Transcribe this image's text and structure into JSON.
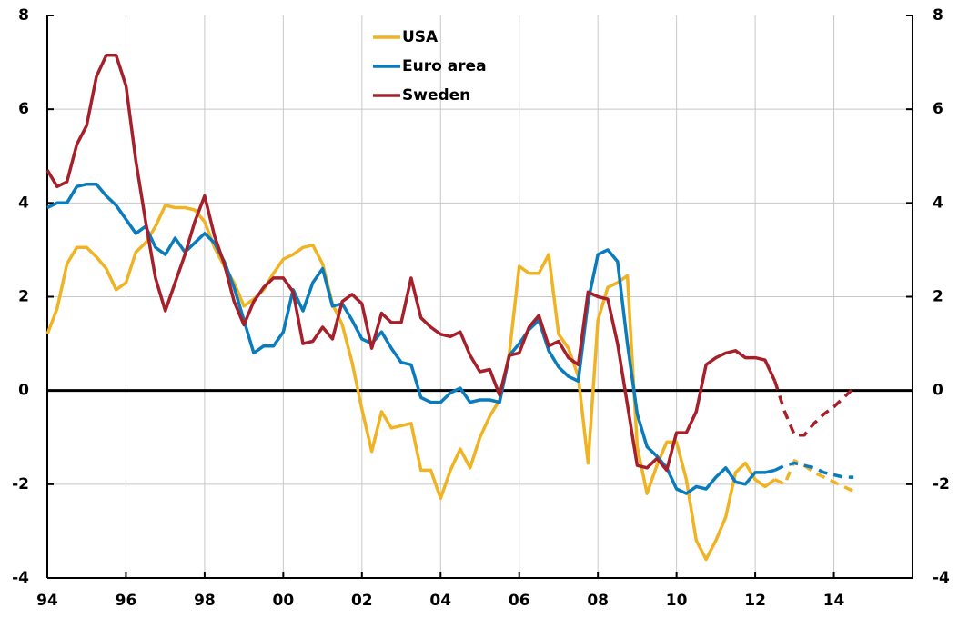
{
  "chart_data": {
    "type": "line",
    "x": [
      1994,
      1994.25,
      1994.5,
      1994.75,
      1995,
      1995.25,
      1995.5,
      1995.75,
      1996,
      1996.25,
      1996.5,
      1996.75,
      1997,
      1997.25,
      1997.5,
      1997.75,
      1998,
      1998.25,
      1998.5,
      1998.75,
      1999,
      1999.25,
      1999.5,
      1999.75,
      2000,
      2000.25,
      2000.5,
      2000.75,
      2001,
      2001.25,
      2001.5,
      2001.75,
      2002,
      2002.25,
      2002.5,
      2002.75,
      2003,
      2003.25,
      2003.5,
      2003.75,
      2004,
      2004.25,
      2004.5,
      2004.75,
      2005,
      2005.25,
      2005.5,
      2005.75,
      2006,
      2006.25,
      2006.5,
      2006.75,
      2007,
      2007.25,
      2007.5,
      2007.75,
      2008,
      2008.25,
      2008.5,
      2008.75,
      2009,
      2009.25,
      2009.5,
      2009.75,
      2010,
      2010.25,
      2010.5,
      2010.75,
      2011,
      2011.25,
      2011.5,
      2011.75,
      2012,
      2012.25,
      2012.5,
      2012.75,
      2013,
      2013.25,
      2013.5,
      2013.75,
      2014,
      2014.25,
      2014.5
    ],
    "series": [
      {
        "name": "USA",
        "color": "#f0b323",
        "values": [
          1.2,
          1.75,
          2.7,
          3.05,
          3.05,
          2.85,
          2.6,
          2.15,
          2.3,
          2.95,
          3.15,
          3.5,
          3.95,
          3.9,
          3.9,
          3.85,
          3.6,
          3.05,
          2.65,
          2.3,
          1.8,
          1.95,
          2.15,
          2.5,
          2.8,
          2.9,
          3.05,
          3.1,
          2.7,
          1.85,
          1.4,
          0.6,
          -0.4,
          -1.3,
          -0.45,
          -0.8,
          -0.75,
          -0.7,
          -1.7,
          -1.7,
          -2.3,
          -1.7,
          -1.25,
          -1.65,
          -1.0,
          -0.55,
          -0.2,
          0.8,
          2.65,
          2.5,
          2.5,
          2.9,
          1.2,
          0.9,
          0.3,
          -1.55,
          1.5,
          2.2,
          2.3,
          2.45,
          -1.2,
          -2.2,
          -1.6,
          -1.1,
          -1.1,
          -1.9,
          -3.2,
          -3.6,
          -3.2,
          -2.7,
          -1.75,
          -1.55,
          -1.9,
          -2.05,
          -1.9,
          -2.0,
          -1.5,
          -1.6,
          -1.75,
          -1.85,
          -1.95,
          -2.05,
          -2.15
        ]
      },
      {
        "name": "Euro area",
        "color": "#0a7bbd",
        "values": [
          3.9,
          4.0,
          4.0,
          4.35,
          4.4,
          4.4,
          4.15,
          3.95,
          3.65,
          3.35,
          3.5,
          3.05,
          2.9,
          3.25,
          2.95,
          3.15,
          3.35,
          3.15,
          2.75,
          2.2,
          1.5,
          0.8,
          0.95,
          0.95,
          1.25,
          2.15,
          1.7,
          2.3,
          2.6,
          1.8,
          1.85,
          1.5,
          1.1,
          1.0,
          1.25,
          0.9,
          0.6,
          0.55,
          -0.15,
          -0.25,
          -0.25,
          -0.05,
          0.05,
          -0.25,
          -0.2,
          -0.2,
          -0.25,
          0.75,
          1.0,
          1.3,
          1.5,
          0.85,
          0.5,
          0.3,
          0.2,
          1.9,
          2.9,
          3.0,
          2.75,
          1.0,
          -0.5,
          -1.2,
          -1.4,
          -1.65,
          -2.1,
          -2.2,
          -2.05,
          -2.1,
          -1.85,
          -1.65,
          -1.95,
          -2.0,
          -1.75,
          -1.75,
          -1.7,
          -1.6,
          -1.55,
          -1.6,
          -1.65,
          -1.75,
          -1.8,
          -1.85,
          -1.85
        ]
      },
      {
        "name": "Sweden",
        "color": "#a5202a",
        "values": [
          4.7,
          4.35,
          4.45,
          5.25,
          5.65,
          6.7,
          7.15,
          7.15,
          6.5,
          4.9,
          3.6,
          2.4,
          1.7,
          2.3,
          2.9,
          3.6,
          4.15,
          3.3,
          2.7,
          1.9,
          1.4,
          1.9,
          2.2,
          2.4,
          2.4,
          2.1,
          1.0,
          1.05,
          1.35,
          1.1,
          1.9,
          2.05,
          1.85,
          0.9,
          1.65,
          1.45,
          1.45,
          2.4,
          1.55,
          1.35,
          1.2,
          1.15,
          1.25,
          0.75,
          0.4,
          0.45,
          -0.1,
          0.75,
          0.8,
          1.35,
          1.6,
          0.95,
          1.05,
          0.7,
          0.55,
          2.1,
          2.0,
          1.95,
          1.0,
          -0.3,
          -1.6,
          -1.65,
          -1.45,
          -1.7,
          -0.9,
          -0.9,
          -0.45,
          0.55,
          0.7,
          0.8,
          0.85,
          0.7,
          0.7,
          0.65,
          0.2,
          -0.45,
          -0.95,
          -0.95,
          -0.7,
          -0.5,
          -0.35,
          -0.15,
          0.05
        ]
      }
    ],
    "forecast_from": 2012.5,
    "xlim": [
      1994,
      2016
    ],
    "xticks": [
      {
        "value": 1994,
        "label": "94"
      },
      {
        "value": 1996,
        "label": "96"
      },
      {
        "value": 1998,
        "label": "98"
      },
      {
        "value": 2000,
        "label": "00"
      },
      {
        "value": 2002,
        "label": "02"
      },
      {
        "value": 2004,
        "label": "04"
      },
      {
        "value": 2006,
        "label": "06"
      },
      {
        "value": 2008,
        "label": "08"
      },
      {
        "value": 2010,
        "label": "10"
      },
      {
        "value": 2012,
        "label": "12"
      },
      {
        "value": 2014,
        "label": "14"
      }
    ],
    "ylim": [
      -4,
      8
    ],
    "yticks": [
      -4,
      -2,
      0,
      2,
      4,
      6,
      8
    ],
    "grid": true
  }
}
